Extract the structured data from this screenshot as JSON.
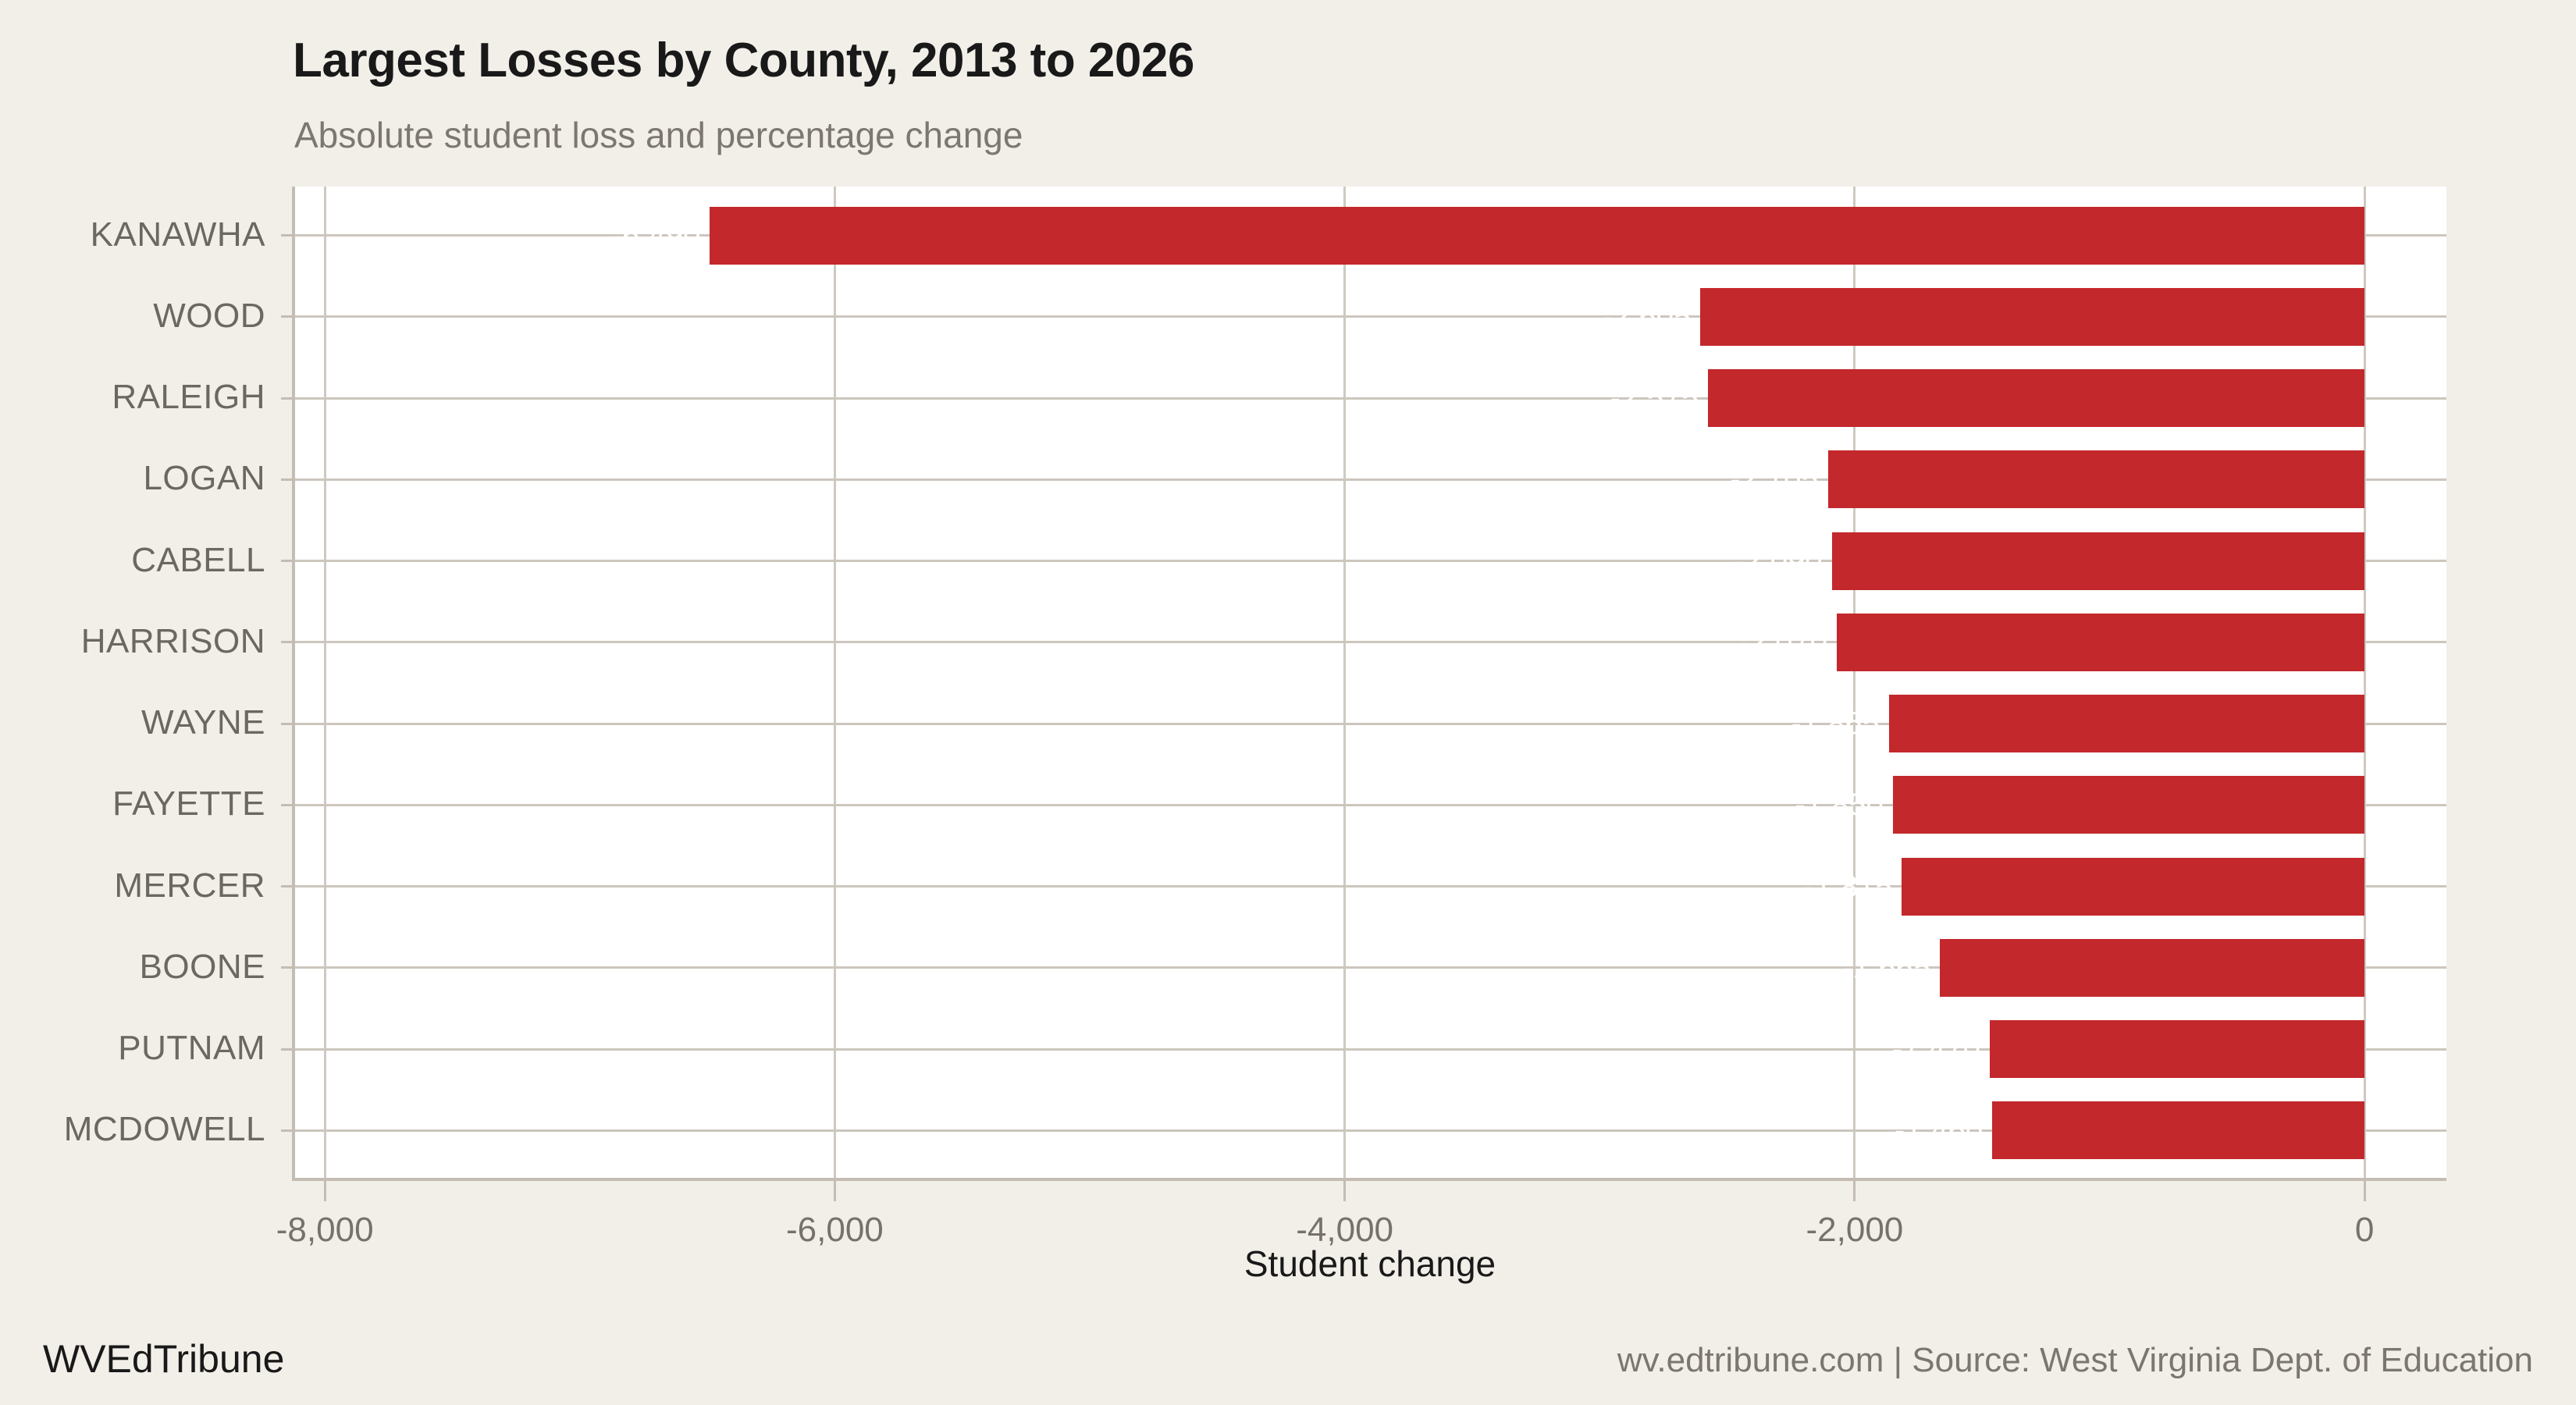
{
  "header": {
    "title": "Largest Losses by County, 2013 to 2026",
    "subtitle": "Absolute student loss and percentage change"
  },
  "footer": {
    "brand": "WVEdTribune",
    "source": "wv.edtribune.com | Source: West Virginia Dept. of Education"
  },
  "chart_data": {
    "type": "bar",
    "orientation": "horizontal",
    "title": "Largest Losses by County, 2013 to 2026",
    "subtitle": "Absolute student loss and percentage change",
    "xlabel": "Student change",
    "ylabel": "",
    "categories": [
      "KANAWHA",
      "WOOD",
      "RALEIGH",
      "LOGAN",
      "CABELL",
      "HARRISON",
      "WAYNE",
      "FAYETTE",
      "MERCER",
      "BOONE",
      "PUTNAM",
      "MCDOWELL"
    ],
    "values": [
      -6490,
      -2605,
      -2575,
      -2105,
      -2090,
      -2070,
      -1865,
      -1850,
      -1815,
      -1665,
      -1470,
      -1460
    ],
    "bar_labels": [
      "-6,490",
      "-2,605",
      "-2,575",
      "-2,105",
      "-2,090",
      "-2,070",
      "-1,865",
      "-1,850",
      "-1,815",
      "-1,665",
      "-1,470",
      "-1,460"
    ],
    "bar_labels_note": "labels are rendered in white and are not legible against the white plot background",
    "xlim": [
      -8123,
      321
    ],
    "xticks": {
      "values": [
        -8000,
        -6000,
        -4000,
        -2000,
        0
      ],
      "labels": [
        "-8,000",
        "-6,000",
        "-4,000",
        "-2,000",
        "0"
      ]
    },
    "grid": "vertical-gridlines-and-horizontal-row-leader-lines",
    "legend": "none"
  },
  "colors": {
    "background": "#F2EFE9",
    "plot_background": "#FFFFFF",
    "bar": "#C3282C",
    "gridline": "#CFC9C0",
    "leader_line": "#CCC6BD",
    "axis_line": "#C3BDB3",
    "title": "#191919",
    "subtitle": "#7C7770",
    "y_label": "#6B6761",
    "x_tick_label": "#76716A",
    "source_text": "#7B766F",
    "bar_label": "#FFFFFF"
  }
}
